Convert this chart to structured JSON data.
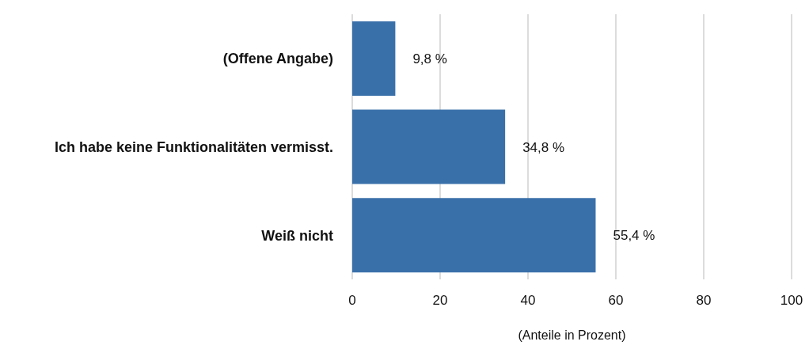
{
  "chart_data": {
    "type": "bar",
    "orientation": "horizontal",
    "categories": [
      "(Offene Angabe)",
      "Ich habe keine Funktionalitäten vermisst.",
      "Weiß nicht"
    ],
    "values": [
      9.8,
      34.8,
      55.4
    ],
    "value_labels": [
      "9,8 %",
      "34,8 %",
      "55,4 %"
    ],
    "color": "#3a70aa",
    "xlabel": "(Anteile in Prozent)",
    "xlim": [
      0,
      100
    ],
    "xticks": [
      0,
      20,
      40,
      60,
      80,
      100
    ],
    "grid": "x"
  }
}
